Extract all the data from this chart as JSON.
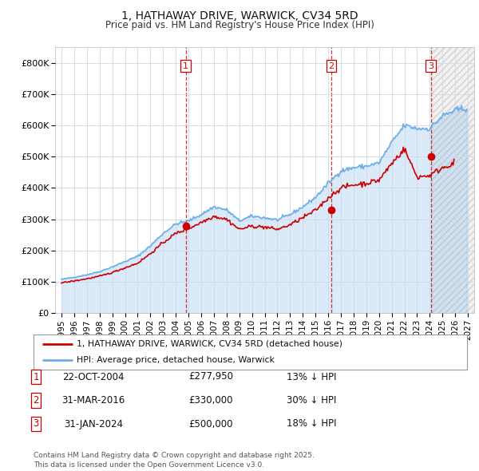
{
  "title": "1, HATHAWAY DRIVE, WARWICK, CV34 5RD",
  "subtitle": "Price paid vs. HM Land Registry's House Price Index (HPI)",
  "ylim": [
    0,
    850000
  ],
  "yticks": [
    0,
    100000,
    200000,
    300000,
    400000,
    500000,
    600000,
    700000,
    800000
  ],
  "ytick_labels": [
    "£0",
    "£100K",
    "£200K",
    "£300K",
    "£400K",
    "£500K",
    "£600K",
    "£700K",
    "£800K"
  ],
  "hpi_color": "#6daee8",
  "price_color": "#cc0000",
  "marker_color": "#cc0000",
  "vline_color": "#cc0000",
  "grid_color": "#d0d8e8",
  "background_color": "#ffffff",
  "legend_house_label": "1, HATHAWAY DRIVE, WARWICK, CV34 5RD (detached house)",
  "legend_hpi_label": "HPI: Average price, detached house, Warwick",
  "footer_text": "Contains HM Land Registry data © Crown copyright and database right 2025.\nThis data is licensed under the Open Government Licence v3.0.",
  "transactions": [
    {
      "num": 1,
      "date": "22-OCT-2004",
      "price": 277950,
      "hpi_pct": "13% ↓ HPI",
      "x_year": 2004.79
    },
    {
      "num": 2,
      "date": "31-MAR-2016",
      "price": 330000,
      "hpi_pct": "30% ↓ HPI",
      "x_year": 2016.25
    },
    {
      "num": 3,
      "date": "31-JAN-2024",
      "price": 500000,
      "hpi_pct": "18% ↓ HPI",
      "x_year": 2024.08
    }
  ],
  "xlim": [
    1994.5,
    2027.5
  ],
  "xtick_years": [
    1995,
    1996,
    1997,
    1998,
    1999,
    2000,
    2001,
    2002,
    2003,
    2004,
    2005,
    2006,
    2007,
    2008,
    2009,
    2010,
    2011,
    2012,
    2013,
    2014,
    2015,
    2016,
    2017,
    2018,
    2019,
    2020,
    2021,
    2022,
    2023,
    2024,
    2025,
    2026,
    2027
  ],
  "hatch_start": 2024.08
}
